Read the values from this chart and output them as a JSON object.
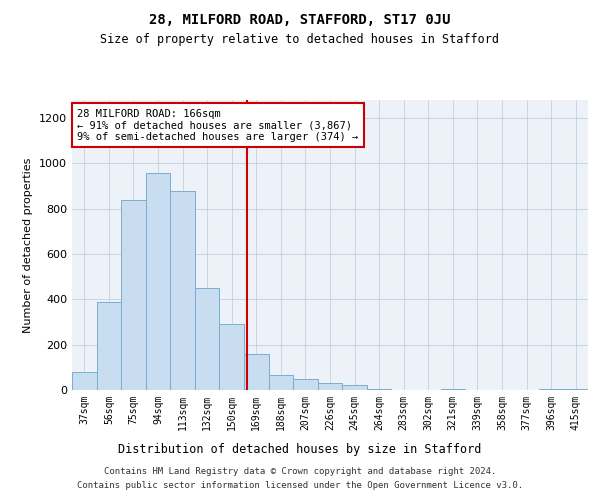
{
  "title": "28, MILFORD ROAD, STAFFORD, ST17 0JU",
  "subtitle": "Size of property relative to detached houses in Stafford",
  "xlabel": "Distribution of detached houses by size in Stafford",
  "ylabel": "Number of detached properties",
  "categories": [
    "37sqm",
    "56sqm",
    "75sqm",
    "94sqm",
    "113sqm",
    "132sqm",
    "150sqm",
    "169sqm",
    "188sqm",
    "207sqm",
    "226sqm",
    "245sqm",
    "264sqm",
    "283sqm",
    "302sqm",
    "321sqm",
    "339sqm",
    "358sqm",
    "377sqm",
    "396sqm",
    "415sqm"
  ],
  "values": [
    80,
    390,
    840,
    960,
    880,
    450,
    290,
    160,
    65,
    50,
    30,
    20,
    5,
    2,
    2,
    5,
    0,
    0,
    0,
    5,
    5
  ],
  "bar_color": "#c9ddf0",
  "bar_edge_color": "#7aadd4",
  "annotation_line1": "28 MILFORD ROAD: 166sqm",
  "annotation_line2": "← 91% of detached houses are smaller (3,867)",
  "annotation_line3": "9% of semi-detached houses are larger (374) →",
  "annotation_box_color": "#ffffff",
  "annotation_box_edge_color": "#cc0000",
  "vline_x_index": 6.62,
  "vline_color": "#cc0000",
  "ylim": [
    0,
    1280
  ],
  "yticks": [
    0,
    200,
    400,
    600,
    800,
    1000,
    1200
  ],
  "background_color": "#edf1f8",
  "footer_line1": "Contains HM Land Registry data © Crown copyright and database right 2024.",
  "footer_line2": "Contains public sector information licensed under the Open Government Licence v3.0."
}
